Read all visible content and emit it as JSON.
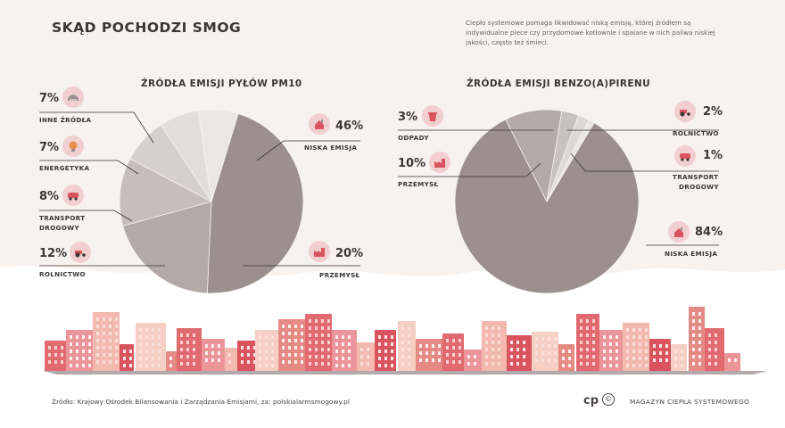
{
  "title": "SKĄD POCHODZI SMOG",
  "intro": "Ciepło systemowe pomaga likwidować niską emisję, której źródłem są indywidualne piece czy przydomowe kotłownie i spalane w nich paliwa niskiej jakości, często też śmieci.",
  "chart_data": [
    {
      "type": "pie",
      "title": "ŹRÓDŁA EMISJI PYŁÓW PM10",
      "slices": [
        {
          "label": "NISKA EMISJA",
          "value": 46,
          "display": "46%",
          "color": "#9b8f8f"
        },
        {
          "label": "PRZEMYSŁ",
          "value": 20,
          "display": "20%",
          "color": "#b3a9a9"
        },
        {
          "label": "ROLNICTWO",
          "value": 12,
          "display": "12%",
          "color": "#c6bdbc"
        },
        {
          "label": "TRANSPORT DROGOWY",
          "value": 8,
          "display": "8%",
          "color": "#d6cfce"
        },
        {
          "label": "ENERGETYKA",
          "value": 7,
          "display": "7%",
          "color": "#e2dcdb"
        },
        {
          "label": "INNE ŹRÓDŁA",
          "value": 7,
          "display": "7%",
          "color": "#ece7e6"
        }
      ]
    },
    {
      "type": "pie",
      "title": "ŹRÓDŁA EMISJI BENZO(A)PIRENU",
      "slices": [
        {
          "label": "NISKA EMISJA",
          "value": 84,
          "display": "84%",
          "color": "#9b8f8f"
        },
        {
          "label": "PRZEMYSŁ",
          "value": 10,
          "display": "10%",
          "color": "#b3a9a9"
        },
        {
          "label": "ODPADY",
          "value": 3,
          "display": "3%",
          "color": "#c9c1c0"
        },
        {
          "label": "ROLNICTWO",
          "value": 2,
          "display": "2%",
          "color": "#ddd7d6"
        },
        {
          "label": "TRANSPORT DROGOWY",
          "value": 1,
          "display": "1%",
          "color": "#ebe6e5"
        }
      ]
    }
  ],
  "labels": {
    "pm10": {
      "inne_pct": "7%",
      "inne": "INNE ŹRÓDŁA",
      "energ_pct": "7%",
      "energ": "ENERGETYKA",
      "trans_pct": "8%",
      "trans_1": "TRANSPORT",
      "trans_2": "DROGOWY",
      "rol_pct": "12%",
      "rol": "ROLNICTWO",
      "nisk_pct": "46%",
      "nisk": "NISKA EMISJA",
      "prz_pct": "20%",
      "prz": "PRZEMYSŁ"
    },
    "bap": {
      "odp_pct": "3%",
      "odp": "ODPADY",
      "prz_pct": "10%",
      "prz": "PRZEMYSŁ",
      "rol_pct": "2%",
      "rol": "ROLNICTWO",
      "trans_pct": "1%",
      "trans_1": "TRANSPORT",
      "trans_2": "DROGOWY",
      "nisk_pct": "84%",
      "nisk": "NISKA EMISJA"
    }
  },
  "footer": {
    "source": "Źródło: Krajowy Ośrodek Bilansowania i Zarządzania Emisjami, za: polskialarmsmogowy.pl",
    "brand": "MAGAZYN CIEPŁA SYSTEMOWEGO",
    "logo_mark": "cp",
    "copyright": "©"
  },
  "colors": {
    "icon_bg": "#f1cfd0",
    "accent": "#d9545e",
    "text": "#3b3536"
  }
}
